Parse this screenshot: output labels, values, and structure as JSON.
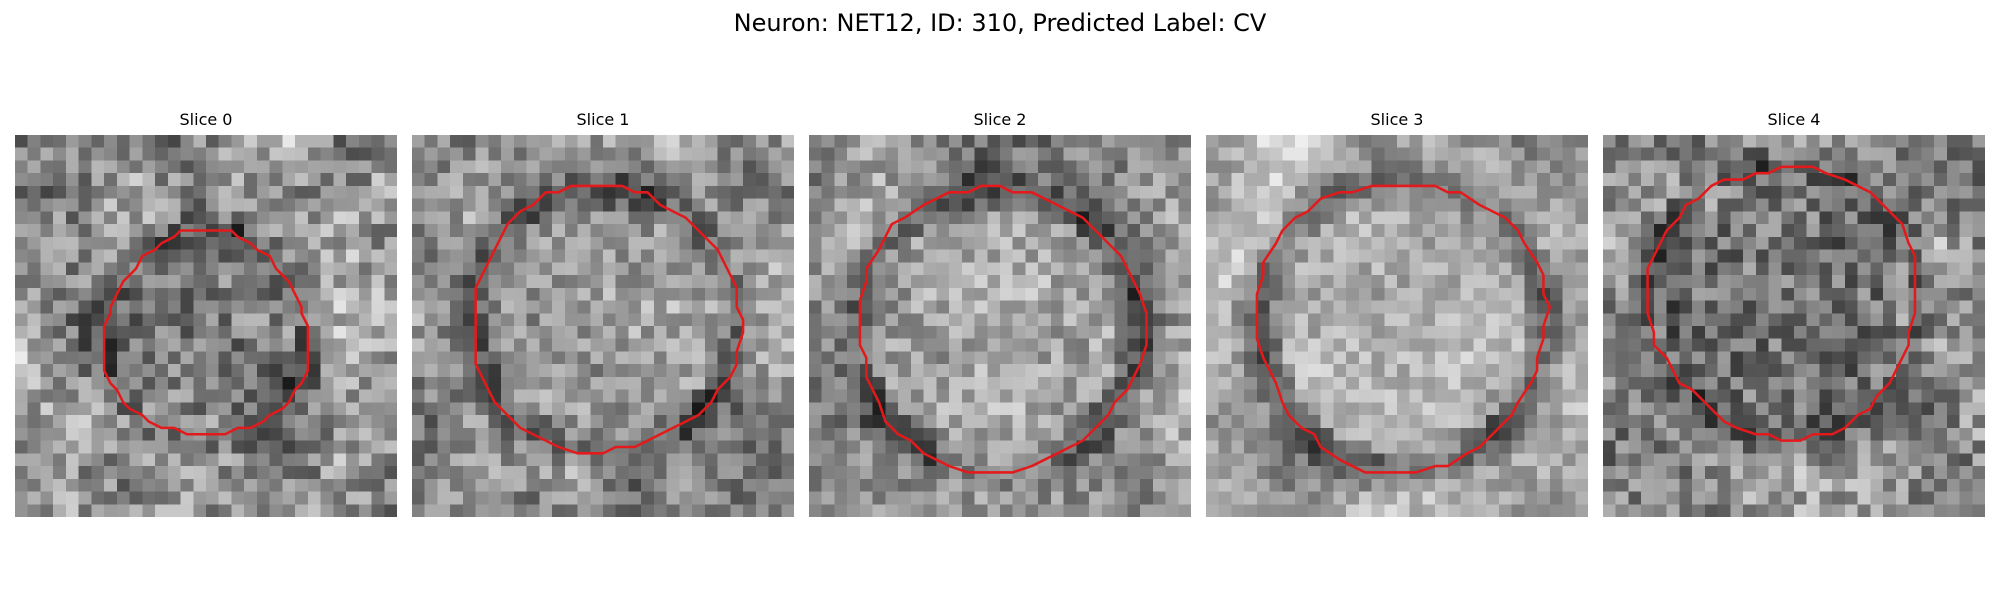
{
  "figure": {
    "title": "Neuron: NET12, ID: 310, Predicted Label: CV"
  },
  "panels": [
    {
      "title": "Slice 0"
    },
    {
      "title": "Slice 1"
    },
    {
      "title": "Slice 2"
    },
    {
      "title": "Slice 3"
    },
    {
      "title": "Slice 4"
    }
  ],
  "colors": {
    "contour": "#e31a1c",
    "background": "#ffffff"
  }
}
